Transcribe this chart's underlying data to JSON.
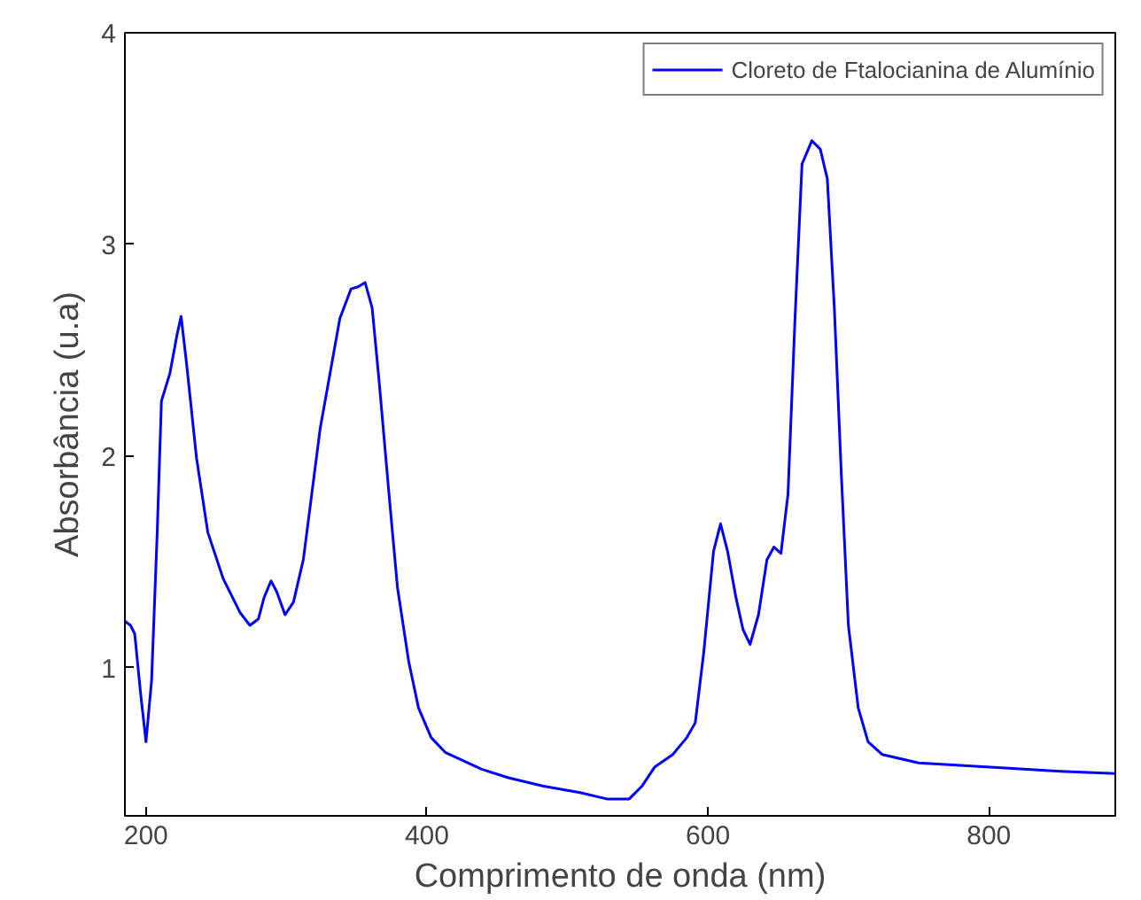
{
  "chart_data": {
    "type": "line",
    "xlabel": "Comprimento de onda (nm)",
    "ylabel": "Absorbância (u.a)",
    "xlim": [
      185,
      890
    ],
    "ylim": [
      0.3,
      4
    ],
    "xticks": [
      200,
      400,
      600,
      800
    ],
    "yticks": [
      1,
      2,
      3,
      4
    ],
    "grid": false,
    "legend": "top right",
    "x": [
      185,
      189,
      192,
      196,
      200,
      204,
      208,
      211,
      217,
      222,
      225,
      229,
      236,
      244,
      255,
      267,
      274,
      280,
      284,
      289,
      293,
      299,
      305,
      312,
      318,
      324,
      331,
      338,
      346,
      351,
      356,
      361,
      366,
      373,
      379,
      387,
      394,
      403,
      413,
      426,
      439,
      458,
      483,
      509,
      528,
      544,
      553,
      562,
      575,
      585,
      591,
      597,
      604,
      609,
      614,
      620,
      625,
      630,
      636,
      642,
      647,
      652,
      657,
      662,
      667,
      674,
      680,
      685,
      690,
      695,
      700,
      707,
      714,
      724,
      750,
      801,
      851,
      890
    ],
    "series": [
      {
        "name": "Cloreto de Ftalocianina de Alumínio",
        "color": "#0000ff",
        "values": [
          1.22,
          1.2,
          1.16,
          0.89,
          0.65,
          0.94,
          1.64,
          2.26,
          2.39,
          2.57,
          2.66,
          2.43,
          1.99,
          1.64,
          1.42,
          1.26,
          1.2,
          1.23,
          1.33,
          1.41,
          1.36,
          1.25,
          1.31,
          1.51,
          1.82,
          2.13,
          2.39,
          2.65,
          2.79,
          2.8,
          2.82,
          2.7,
          2.35,
          1.82,
          1.38,
          1.03,
          0.81,
          0.67,
          0.6,
          0.56,
          0.52,
          0.48,
          0.44,
          0.41,
          0.38,
          0.38,
          0.44,
          0.53,
          0.59,
          0.67,
          0.74,
          1.07,
          1.55,
          1.68,
          1.55,
          1.33,
          1.18,
          1.11,
          1.25,
          1.51,
          1.57,
          1.54,
          1.82,
          2.65,
          3.38,
          3.49,
          3.45,
          3.31,
          2.7,
          1.91,
          1.2,
          0.81,
          0.65,
          0.59,
          0.55,
          0.53,
          0.51,
          0.5
        ]
      }
    ]
  }
}
